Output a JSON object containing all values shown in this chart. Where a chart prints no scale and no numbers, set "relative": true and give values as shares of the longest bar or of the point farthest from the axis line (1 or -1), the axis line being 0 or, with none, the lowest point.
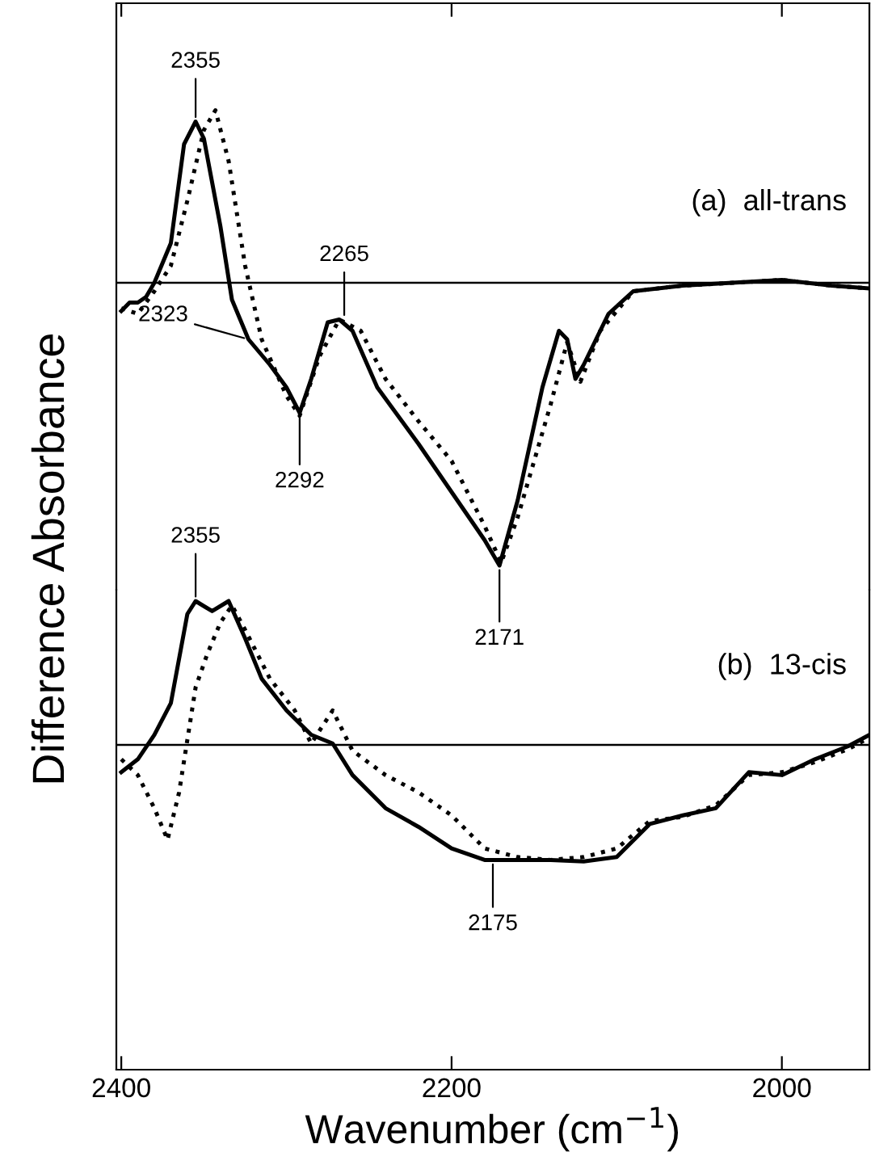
{
  "chart_data": [
    {
      "type": "line",
      "relative": true,
      "ylabel": "Difference Absorbance",
      "xlim": [
        2403,
        1947
      ],
      "xticks": [
        2400,
        2200,
        2000
      ],
      "tick_labels": false,
      "grid": false,
      "legend": false,
      "marker": "none",
      "ref_lines": [
        {
          "axis": "y",
          "value": 0,
          "color": "#000000",
          "line_style": "solid"
        }
      ],
      "annotations": [
        "(a)  all-trans",
        {
          "text": "2355",
          "x": 2355,
          "y": 0.57
        },
        {
          "text": "2323",
          "x": 2323,
          "y": -0.2
        },
        {
          "text": "2292",
          "x": 2292,
          "y": -0.46
        },
        {
          "text": "2265",
          "x": 2265,
          "y": -0.13
        },
        {
          "text": "2171",
          "x": 2171,
          "y": -1.0
        }
      ],
      "series": [
        {
          "color": "#000000",
          "line_style": "solid",
          "x": [
            2400,
            2395,
            2390,
            2385,
            2380,
            2370,
            2362,
            2355,
            2350,
            2340,
            2333,
            2323,
            2310,
            2300,
            2292,
            2285,
            2275,
            2268,
            2260,
            2245,
            2220,
            2200,
            2180,
            2171,
            2160,
            2145,
            2135,
            2130,
            2125,
            2120,
            2105,
            2090,
            2060,
            2030,
            2000,
            1970,
            1947
          ],
          "values": [
            -0.1,
            -0.07,
            -0.07,
            -0.05,
            0,
            0.14,
            0.49,
            0.57,
            0.51,
            0.2,
            -0.06,
            -0.2,
            -0.29,
            -0.37,
            -0.46,
            -0.34,
            -0.14,
            -0.13,
            -0.17,
            -0.37,
            -0.57,
            -0.74,
            -0.91,
            -1.0,
            -0.77,
            -0.37,
            -0.17,
            -0.2,
            -0.34,
            -0.29,
            -0.11,
            -0.03,
            -0.01,
            0,
            0.01,
            -0.01,
            -0.02
          ]
        },
        {
          "color": "#000000",
          "line_style": "dotted",
          "x": [
            2400,
            2390,
            2380,
            2370,
            2360,
            2350,
            2343,
            2335,
            2325,
            2315,
            2300,
            2292,
            2280,
            2268,
            2255,
            2240,
            2220,
            2200,
            2180,
            2170,
            2160,
            2140,
            2130,
            2122,
            2110,
            2090,
            2060,
            2030,
            2000,
            1970,
            1947
          ],
          "values": [
            -0.09,
            -0.11,
            -0.03,
            0.06,
            0.29,
            0.54,
            0.61,
            0.43,
            0.06,
            -0.2,
            -0.4,
            -0.47,
            -0.26,
            -0.13,
            -0.17,
            -0.34,
            -0.49,
            -0.63,
            -0.86,
            -0.99,
            -0.83,
            -0.43,
            -0.21,
            -0.35,
            -0.17,
            -0.03,
            -0.01,
            0,
            0.01,
            -0.01,
            -0.02
          ]
        }
      ]
    },
    {
      "type": "line",
      "relative": true,
      "xlabel": "Wavenumber (cm$^{−1}$)",
      "xlim": [
        2403,
        1947
      ],
      "xticks": [
        2400,
        2200,
        2000
      ],
      "tick_labels": "x",
      "grid": false,
      "legend": false,
      "marker": "none",
      "ref_lines": [
        {
          "axis": "y",
          "value": 0,
          "color": "#000000",
          "line_style": "solid"
        }
      ],
      "annotations": [
        "(b)  13-cis",
        {
          "text": "2355",
          "x": 2355,
          "y": 1.0
        },
        {
          "text": "2175",
          "x": 2175,
          "y": -0.8
        }
      ],
      "series": [
        {
          "color": "#000000",
          "line_style": "solid",
          "x": [
            2400,
            2390,
            2380,
            2370,
            2360,
            2355,
            2345,
            2335,
            2325,
            2315,
            2300,
            2285,
            2272,
            2260,
            2240,
            2220,
            2200,
            2180,
            2160,
            2140,
            2120,
            2100,
            2080,
            2060,
            2040,
            2020,
            2000,
            1980,
            1960,
            1947
          ],
          "values": [
            -0.19,
            -0.1,
            0.07,
            0.29,
            0.91,
            1.0,
            0.93,
            1.0,
            0.74,
            0.46,
            0.24,
            0.07,
            0.01,
            -0.21,
            -0.44,
            -0.57,
            -0.72,
            -0.8,
            -0.8,
            -0.8,
            -0.81,
            -0.78,
            -0.55,
            -0.49,
            -0.44,
            -0.19,
            -0.21,
            -0.1,
            -0.01,
            0.07
          ]
        },
        {
          "color": "#000000",
          "line_style": "dotted",
          "x": [
            2400,
            2390,
            2380,
            2372,
            2365,
            2355,
            2348,
            2340,
            2333,
            2325,
            2310,
            2295,
            2285,
            2272,
            2260,
            2240,
            2220,
            2200,
            2180,
            2160,
            2140,
            2120,
            2100,
            2080,
            2060,
            2040,
            2020,
            2000,
            1980,
            1960,
            1947
          ],
          "values": [
            -0.1,
            -0.21,
            -0.44,
            -0.66,
            -0.33,
            0.4,
            0.63,
            0.85,
            0.97,
            0.8,
            0.46,
            0.24,
            0.01,
            0.24,
            -0.04,
            -0.21,
            -0.33,
            -0.49,
            -0.72,
            -0.78,
            -0.8,
            -0.78,
            -0.72,
            -0.53,
            -0.5,
            -0.42,
            -0.21,
            -0.19,
            -0.12,
            -0.03,
            0.05
          ]
        }
      ]
    }
  ]
}
